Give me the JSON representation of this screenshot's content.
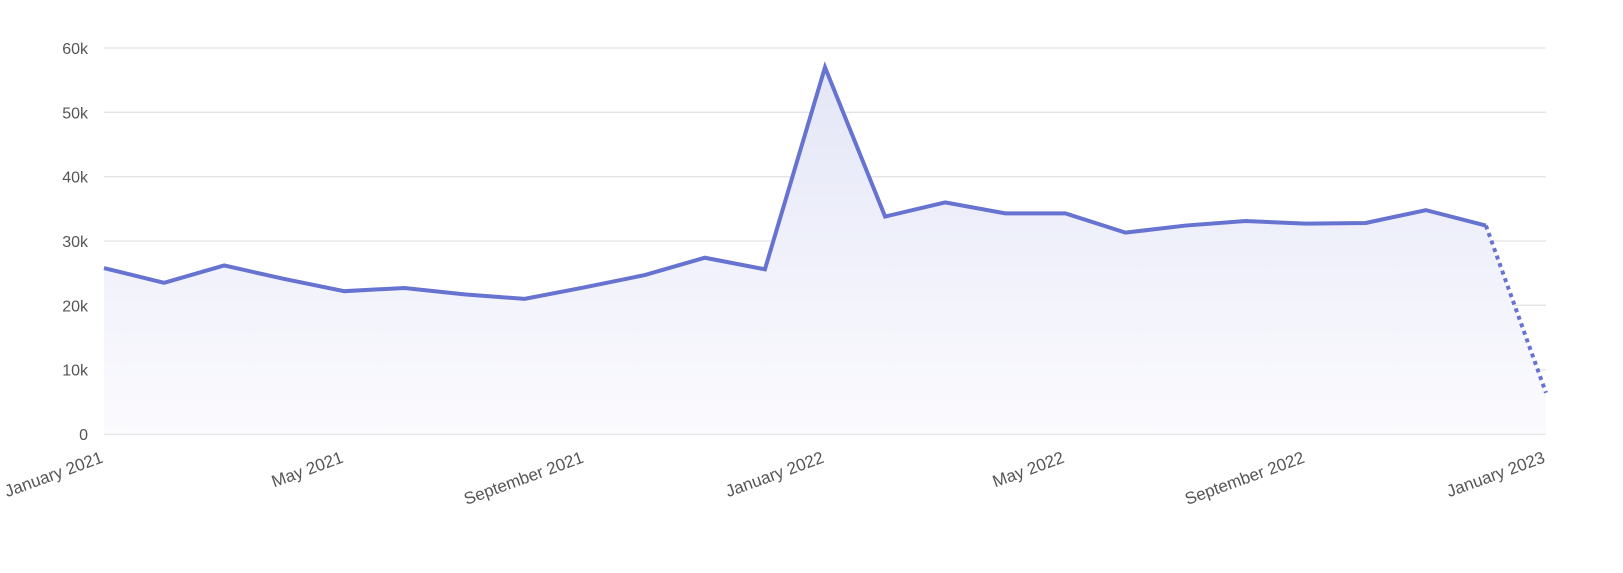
{
  "chart_data": {
    "type": "area",
    "title": "",
    "xlabel": "",
    "ylabel": "",
    "ylim": [
      0,
      60000
    ],
    "grid": true,
    "legend": "none",
    "y_ticks": [
      {
        "value": 0,
        "label": "0"
      },
      {
        "value": 10000,
        "label": "10k"
      },
      {
        "value": 20000,
        "label": "20k"
      },
      {
        "value": 30000,
        "label": "30k"
      },
      {
        "value": 40000,
        "label": "40k"
      },
      {
        "value": 50000,
        "label": "50k"
      },
      {
        "value": 60000,
        "label": "60k"
      }
    ],
    "x_ticks": [
      {
        "value": "2021-01",
        "label": "January 2021"
      },
      {
        "value": "2021-05",
        "label": "May 2021"
      },
      {
        "value": "2021-09",
        "label": "September 2021"
      },
      {
        "value": "2022-01",
        "label": "January 2022"
      },
      {
        "value": "2022-05",
        "label": "May 2022"
      },
      {
        "value": "2022-09",
        "label": "September 2022"
      },
      {
        "value": "2023-01",
        "label": "January 2023"
      }
    ],
    "x": [
      "2021-01",
      "2021-02",
      "2021-03",
      "2021-04",
      "2021-05",
      "2021-06",
      "2021-07",
      "2021-08",
      "2021-09",
      "2021-10",
      "2021-11",
      "2021-12",
      "2022-01",
      "2022-02",
      "2022-03",
      "2022-04",
      "2022-05",
      "2022-06",
      "2022-07",
      "2022-08",
      "2022-09",
      "2022-10",
      "2022-11",
      "2022-12",
      "2023-01"
    ],
    "series": [
      {
        "values": [
          25800,
          23500,
          26200,
          24100,
          22200,
          22700,
          21700,
          21000,
          22800,
          24700,
          27400,
          25600,
          57000,
          33800,
          36000,
          34300,
          34300,
          31300,
          32400,
          33100,
          32700,
          32800,
          34800,
          32400,
          6400
        ],
        "partial_last_point": true
      }
    ],
    "colors": {
      "line": "#6673d0",
      "fill_top": "#e4e6f7",
      "fill_bottom": "#fbfbfe"
    }
  }
}
